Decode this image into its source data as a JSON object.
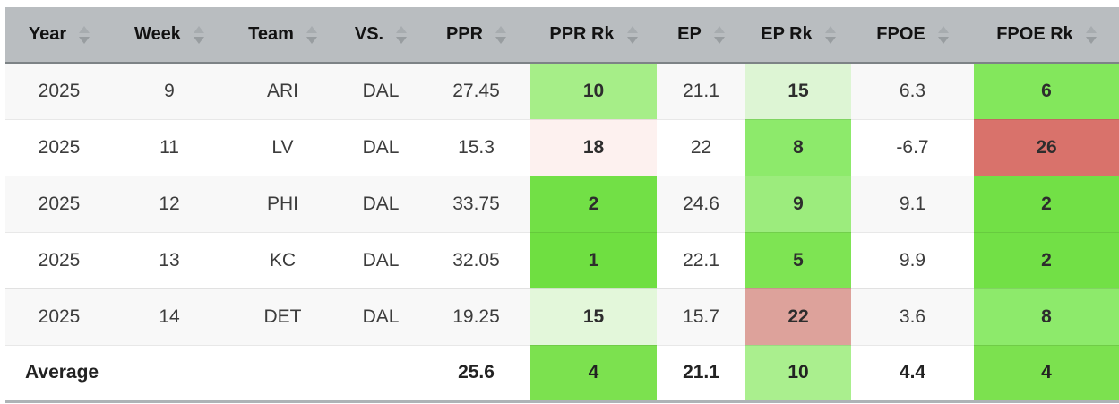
{
  "table": {
    "columns": [
      {
        "key": "year",
        "label": "Year"
      },
      {
        "key": "week",
        "label": "Week"
      },
      {
        "key": "team",
        "label": "Team"
      },
      {
        "key": "vs",
        "label": "VS."
      },
      {
        "key": "ppr",
        "label": "PPR"
      },
      {
        "key": "ppr_rk",
        "label": "PPR Rk"
      },
      {
        "key": "ep",
        "label": "EP"
      },
      {
        "key": "ep_rk",
        "label": "EP Rk"
      },
      {
        "key": "fpoe",
        "label": "FPOE"
      },
      {
        "key": "fpoe_rk",
        "label": "FPOE Rk"
      }
    ],
    "rows": [
      {
        "year": "2025",
        "week": "9",
        "team": "ARI",
        "vs": "DAL",
        "ppr": "27.45",
        "ppr_rk": "10",
        "ppr_rk_bg": "#a6ee88",
        "ep": "21.1",
        "ep_rk": "15",
        "ep_rk_bg": "#ddf5d4",
        "fpoe": "6.3",
        "fpoe_rk": "6",
        "fpoe_rk_bg": "#83e75c"
      },
      {
        "year": "2025",
        "week": "11",
        "team": "LV",
        "vs": "DAL",
        "ppr": "15.3",
        "ppr_rk": "18",
        "ppr_rk_bg": "#fdf1ef",
        "ep": "22",
        "ep_rk": "8",
        "ep_rk_bg": "#8dea6b",
        "fpoe": "-6.7",
        "fpoe_rk": "26",
        "fpoe_rk_bg": "#d9726b"
      },
      {
        "year": "2025",
        "week": "12",
        "team": "PHI",
        "vs": "DAL",
        "ppr": "33.75",
        "ppr_rk": "2",
        "ppr_rk_bg": "#72e046",
        "ep": "24.6",
        "ep_rk": "9",
        "ep_rk_bg": "#9cec7d",
        "fpoe": "9.1",
        "fpoe_rk": "2",
        "fpoe_rk_bg": "#72e046"
      },
      {
        "year": "2025",
        "week": "13",
        "team": "KC",
        "vs": "DAL",
        "ppr": "32.05",
        "ppr_rk": "1",
        "ppr_rk_bg": "#6fdf41",
        "ep": "22.1",
        "ep_rk": "5",
        "ep_rk_bg": "#7ee453",
        "fpoe": "9.9",
        "fpoe_rk": "2",
        "fpoe_rk_bg": "#72e046"
      },
      {
        "year": "2025",
        "week": "14",
        "team": "DET",
        "vs": "DAL",
        "ppr": "19.25",
        "ppr_rk": "15",
        "ppr_rk_bg": "#e3f7da",
        "ep": "15.7",
        "ep_rk": "22",
        "ep_rk_bg": "#dda29b",
        "fpoe": "3.6",
        "fpoe_rk": "8",
        "fpoe_rk_bg": "#8dea6b"
      }
    ],
    "average_row": {
      "label": "Average",
      "week": "",
      "team": "",
      "vs": "",
      "ppr": "25.6",
      "ppr_rk": "4",
      "ppr_rk_bg": "#7ce14f",
      "ep": "21.1",
      "ep_rk": "10",
      "ep_rk_bg": "#aaef8e",
      "fpoe": "4.4",
      "fpoe_rk": "4",
      "fpoe_rk_bg": "#7ce14f"
    },
    "colors": {
      "header_bg": "#b9bdc0",
      "header_text": "#121212",
      "header_border": "#7d8386",
      "sort_arrow": "#a0a5a8",
      "row_odd_bg": "#f8f8f8",
      "row_even_bg": "#ffffff",
      "row_border": "#e2e2e2",
      "table_bottom_border": "#aeb3b6",
      "rank_best_green": "#6fdf41",
      "rank_worst_red": "#d9726b"
    }
  }
}
